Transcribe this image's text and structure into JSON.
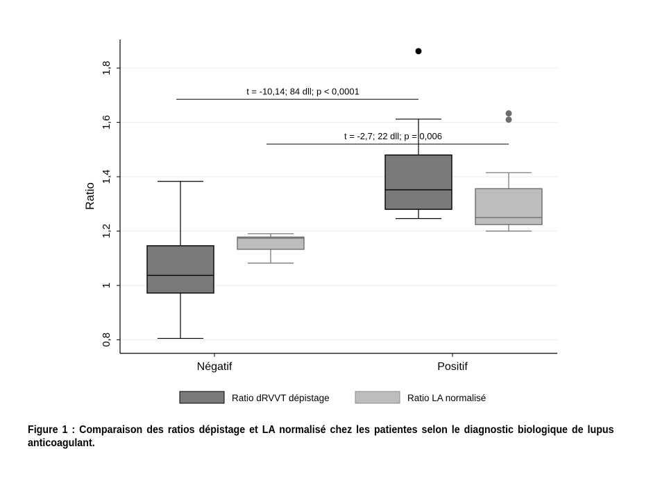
{
  "chart_data": {
    "type": "box",
    "title": "",
    "xlabel": "",
    "ylabel": "Ratio",
    "ylim": [
      0.75,
      1.905
    ],
    "yticks": [
      {
        "value": 0.8,
        "label": "0,8"
      },
      {
        "value": 1.0,
        "label": "1"
      },
      {
        "value": 1.2,
        "label": "1,2"
      },
      {
        "value": 1.4,
        "label": "1,4"
      },
      {
        "value": 1.6,
        "label": "1,6"
      },
      {
        "value": 1.8,
        "label": "1,8"
      }
    ],
    "categories": [
      "Négatif",
      "Positif"
    ],
    "grid": true,
    "legend": "bottom",
    "series": [
      {
        "name": "Ratio dRVVT dépistage",
        "color": "#7a7a7a",
        "boxes": [
          {
            "category": "Négatif",
            "whisker_low": 0.805,
            "q1": 0.972,
            "median": 1.037,
            "q3": 1.146,
            "whisker_high": 1.383,
            "outliers": []
          },
          {
            "category": "Positif",
            "whisker_low": 1.246,
            "q1": 1.28,
            "median": 1.352,
            "q3": 1.48,
            "whisker_high": 1.612,
            "outliers": [
              1.862
            ]
          }
        ]
      },
      {
        "name": "Ratio LA normalisé",
        "color": "#bdbdbd",
        "boxes": [
          {
            "category": "Négatif",
            "whisker_low": 1.082,
            "q1": 1.133,
            "median": 1.174,
            "q3": 1.178,
            "whisker_high": 1.19,
            "outliers": []
          },
          {
            "category": "Positif",
            "whisker_low": 1.2,
            "q1": 1.224,
            "median": 1.25,
            "q3": 1.356,
            "whisker_high": 1.415,
            "outliers": [
              1.61,
              1.633
            ]
          }
        ]
      }
    ],
    "annotations": [
      {
        "text": "t = -10,14; 84 dll; p < 0,0001",
        "y": 1.685,
        "from": "Négatif",
        "to": "Positif",
        "series": "Ratio dRVVT dépistage"
      },
      {
        "text": "t = -2,7; 22 dll; p = 0,006",
        "y": 1.52,
        "from": "Négatif",
        "to": "Positif",
        "series": "Ratio LA normalisé"
      }
    ]
  },
  "caption": "Figure 1 : Comparaison des ratios dépistage et LA normalisé chez les patientes selon le diagnostic biologique de lupus anticoagulant."
}
